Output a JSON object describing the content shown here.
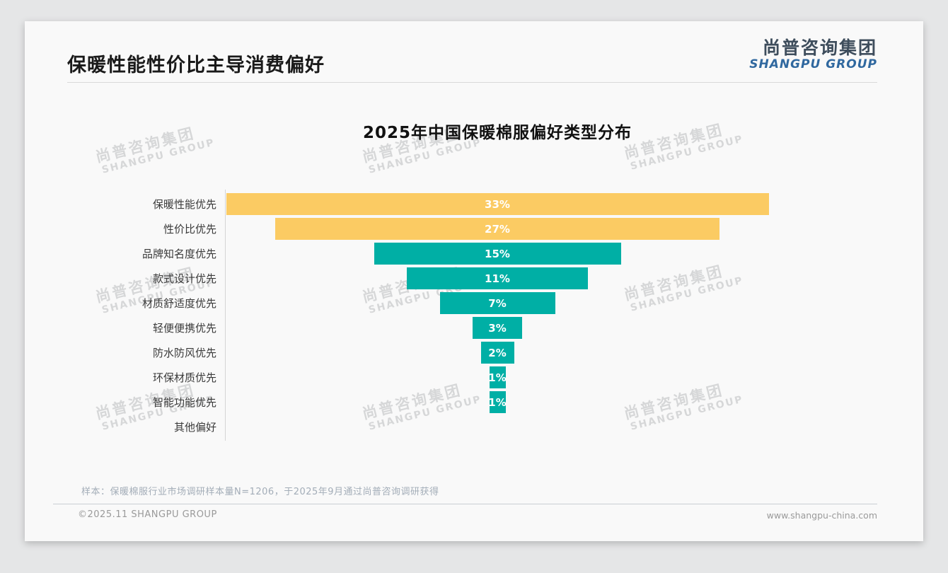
{
  "header": {
    "title": "保暖性能性价比主导消费偏好"
  },
  "logo": {
    "cn": "尚普咨询集团",
    "en": "SHANGPU GROUP"
  },
  "watermark": {
    "cn": "尚普咨询集团",
    "en": "SHANGPU GROUP"
  },
  "chart_data": {
    "type": "bar",
    "orientation": "horizontal-centered-funnel",
    "title": "2025年中国保暖棉服偏好类型分布",
    "categories": [
      "保暖性能优先",
      "性价比优先",
      "品牌知名度优先",
      "款式设计优先",
      "材质舒适度优先",
      "轻便便携优先",
      "防水防风优先",
      "环保材质优先",
      "智能功能优先",
      "其他偏好"
    ],
    "values": [
      33,
      27,
      15,
      11,
      7,
      3,
      2,
      1,
      1,
      0
    ],
    "value_labels": [
      "33%",
      "27%",
      "15%",
      "11%",
      "7%",
      "3%",
      "2%",
      "1%",
      "1%",
      ""
    ],
    "bar_colors": [
      "#FBCB63",
      "#FBCB63",
      "#00AFA5",
      "#00AFA5",
      "#00AFA5",
      "#00AFA5",
      "#00AFA5",
      "#00AFA5",
      "#00AFA5",
      "none"
    ],
    "unit": "%",
    "xlim": [
      0,
      33
    ],
    "grid": false,
    "legend": false
  },
  "colors": {
    "accent_yellow": "#FBCB63",
    "accent_teal": "#00AFA5",
    "logo_cn": "#3E4D5C",
    "logo_en": "#30689F",
    "card_background": "#F9F9F9",
    "page_background": "#E5E6E7"
  },
  "footnote": "样本：保暖棉服行业市场调研样本量N=1206，于2025年9月通过尚普咨询调研获得",
  "footer": {
    "copyright": "©2025.11 SHANGPU GROUP",
    "website": "www.shangpu-china.com"
  }
}
